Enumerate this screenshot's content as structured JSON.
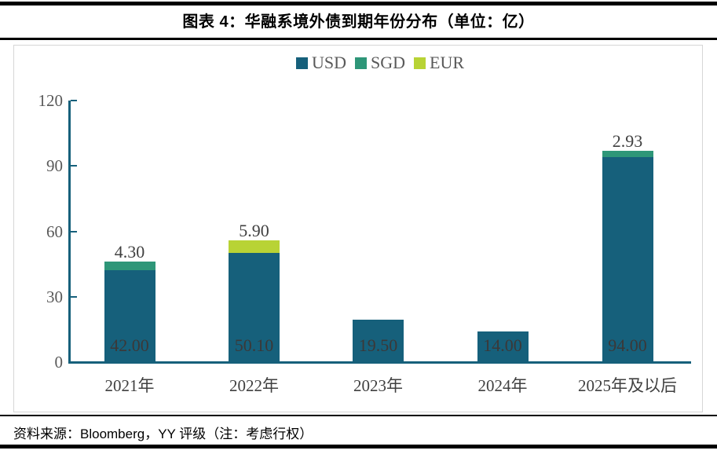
{
  "header": {
    "title": "图表 4：华融系境外债到期年份分布（单位：亿）"
  },
  "footer": {
    "source": "资料来源：Bloomberg，YY 评级（注：考虑行权）"
  },
  "colors": {
    "usd": "#16607b",
    "sgd": "#2e9678",
    "eur": "#b8d335",
    "axis": "#16607b",
    "tick_label": "#595959",
    "label_inside": "#3b3838",
    "label_above": "#404040"
  },
  "legend": {
    "items": [
      {
        "label": "USD",
        "color": "#16607b"
      },
      {
        "label": "SGD",
        "color": "#2e9678"
      },
      {
        "label": "EUR",
        "color": "#b8d335"
      }
    ]
  },
  "chart_data": {
    "type": "bar",
    "stacked": true,
    "title": "图表 4：华融系境外债到期年份分布（单位：亿）",
    "unit": "亿",
    "categories": [
      "2021年",
      "2022年",
      "2023年",
      "2024年",
      "2025年及以后"
    ],
    "series": [
      {
        "name": "USD",
        "color": "#16607b",
        "values": [
          42.0,
          50.1,
          19.5,
          14.0,
          94.0
        ]
      },
      {
        "name": "SGD",
        "color": "#2e9678",
        "values": [
          4.3,
          0,
          0,
          0,
          2.93
        ]
      },
      {
        "name": "EUR",
        "color": "#b8d335",
        "values": [
          0,
          5.9,
          0,
          0,
          0
        ]
      }
    ],
    "inside_labels": [
      "42.00",
      "50.10",
      "19.50",
      "14.00",
      "94.00"
    ],
    "above_labels": [
      "4.30",
      "5.90",
      "",
      "",
      "2.93"
    ],
    "ylim": [
      0,
      120
    ],
    "yticks": [
      0,
      30,
      60,
      90,
      120
    ],
    "grid": false,
    "legend_position": "top-center"
  }
}
